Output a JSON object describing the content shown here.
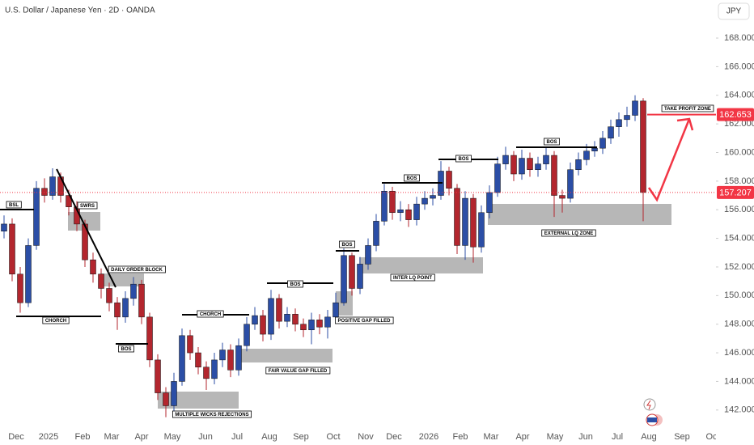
{
  "header": {
    "symbol": "U.S. Dollar / Japanese Yen · 2D · OANDA",
    "currency": "JPY"
  },
  "chart_data": {
    "type": "candlestick",
    "open": [
      154.5,
      155.0,
      151.5,
      149.5,
      153.5,
      157.5,
      157.0,
      158.3,
      157.0,
      156.2,
      155.0,
      152.5,
      151.5,
      150.5,
      149.5,
      148.5,
      149.8,
      150.8,
      148.5,
      145.5,
      143.2,
      142.3,
      144.0,
      147.2,
      146.0,
      145.0,
      144.2,
      145.5,
      146.2,
      144.8,
      146.5,
      148.0,
      148.6,
      147.3,
      149.8,
      148.2,
      148.7,
      148.0,
      147.6,
      148.3,
      147.8,
      148.5,
      149.5,
      152.8,
      150.5,
      152.2,
      153.5,
      155.2,
      157.3,
      155.8,
      156.0,
      155.3,
      156.4,
      156.8,
      157.0,
      158.7,
      157.5,
      153.5,
      156.8,
      153.4,
      155.8,
      157.2,
      159.2,
      159.8,
      158.5,
      159.6,
      158.8,
      159.2,
      159.8,
      157.0,
      156.8,
      158.8,
      159.5,
      160.1,
      160.3,
      161.0,
      161.8,
      162.3,
      162.6,
      163.6
    ],
    "high": [
      155.6,
      155.4,
      152.0,
      154.0,
      158.0,
      158.2,
      158.9,
      158.6,
      157.4,
      156.6,
      155.3,
      153.0,
      151.9,
      150.9,
      149.9,
      150.3,
      151.3,
      151.1,
      148.8,
      145.9,
      143.6,
      144.6,
      147.7,
      147.6,
      146.4,
      145.4,
      146.0,
      146.7,
      146.6,
      147.0,
      148.5,
      149.2,
      149.0,
      150.4,
      150.1,
      149.2,
      149.1,
      148.4,
      148.8,
      148.7,
      149.0,
      150.2,
      153.3,
      153.0,
      152.7,
      154.0,
      155.7,
      157.8,
      157.6,
      156.6,
      156.4,
      156.9,
      157.3,
      157.5,
      159.4,
      159.0,
      157.8,
      157.3,
      157.1,
      156.3,
      157.7,
      159.7,
      160.4,
      160.1,
      160.2,
      160.0,
      159.7,
      160.4,
      160.1,
      157.4,
      159.3,
      160.0,
      160.6,
      160.8,
      161.5,
      162.3,
      162.8,
      163.2,
      164.0,
      163.8
    ],
    "low": [
      154.0,
      151.0,
      148.8,
      149.2,
      153.2,
      156.5,
      156.7,
      156.5,
      155.6,
      154.5,
      152.0,
      150.9,
      149.8,
      148.9,
      147.6,
      148.1,
      149.3,
      148.0,
      145.0,
      142.7,
      141.5,
      141.9,
      143.7,
      145.5,
      144.5,
      143.4,
      143.8,
      145.0,
      144.3,
      144.4,
      146.1,
      147.6,
      146.8,
      146.9,
      147.7,
      147.8,
      147.5,
      147.1,
      146.6,
      147.3,
      147.0,
      148.1,
      149.3,
      150.0,
      150.1,
      151.8,
      153.1,
      154.9,
      155.3,
      155.2,
      154.8,
      154.9,
      156.0,
      156.3,
      156.7,
      157.0,
      152.9,
      152.5,
      152.3,
      153.0,
      155.4,
      156.9,
      158.8,
      158.0,
      158.1,
      158.3,
      158.3,
      158.8,
      155.5,
      155.8,
      156.5,
      158.4,
      159.1,
      159.7,
      159.9,
      160.6,
      161.1,
      161.8,
      162.2,
      155.2
    ],
    "close": [
      155.0,
      151.5,
      149.5,
      153.5,
      157.5,
      157.0,
      158.3,
      157.0,
      156.2,
      155.0,
      152.5,
      151.5,
      150.5,
      149.5,
      148.5,
      149.8,
      150.8,
      148.5,
      145.5,
      143.2,
      142.3,
      144.0,
      147.2,
      146.0,
      145.0,
      144.2,
      145.5,
      146.2,
      144.8,
      146.5,
      148.0,
      148.6,
      147.3,
      149.8,
      148.2,
      148.7,
      148.0,
      147.6,
      148.3,
      147.8,
      148.5,
      149.5,
      152.8,
      150.5,
      152.2,
      153.5,
      155.2,
      157.3,
      155.8,
      156.0,
      155.3,
      156.4,
      156.8,
      157.0,
      158.7,
      157.5,
      153.5,
      156.8,
      153.4,
      155.8,
      157.2,
      159.2,
      159.8,
      158.5,
      159.6,
      158.8,
      159.2,
      159.8,
      157.0,
      156.8,
      158.8,
      159.5,
      160.1,
      160.3,
      161.0,
      161.8,
      162.3,
      162.6,
      163.6,
      157.207
    ],
    "up_color": "#2b4ea6",
    "down_color": "#b3262e",
    "xlim": [
      -0.5,
      88
    ],
    "xticks": [
      {
        "value": 1.5,
        "label": "Dec"
      },
      {
        "value": 5.5,
        "label": "2025"
      },
      {
        "value": 9.7,
        "label": "Feb"
      },
      {
        "value": 13.3,
        "label": "Mar"
      },
      {
        "value": 17.0,
        "label": "Apr"
      },
      {
        "value": 20.8,
        "label": "May"
      },
      {
        "value": 24.9,
        "label": "Jun"
      },
      {
        "value": 28.8,
        "label": "Jul"
      },
      {
        "value": 32.8,
        "label": "Aug"
      },
      {
        "value": 36.7,
        "label": "Sep"
      },
      {
        "value": 40.7,
        "label": "Oct"
      },
      {
        "value": 44.7,
        "label": "Nov"
      },
      {
        "value": 48.2,
        "label": "Dec"
      },
      {
        "value": 52.5,
        "label": "2026"
      },
      {
        "value": 56.4,
        "label": "Feb"
      },
      {
        "value": 60.2,
        "label": "Mar"
      },
      {
        "value": 64.1,
        "label": "Apr"
      },
      {
        "value": 68.1,
        "label": "May"
      },
      {
        "value": 71.9,
        "label": "Jun"
      },
      {
        "value": 75.8,
        "label": "Jul"
      },
      {
        "value": 79.7,
        "label": "Aug"
      },
      {
        "value": 83.8,
        "label": "Sep"
      },
      {
        "value": 87.6,
        "label": "Oct"
      }
    ],
    "ylim": [
      140.8,
      170.66
    ],
    "yticks": [
      {
        "value": 142,
        "label": "142.000"
      },
      {
        "value": 144,
        "label": "144.000"
      },
      {
        "value": 146,
        "label": "146.000"
      },
      {
        "value": 148,
        "label": "148.000"
      },
      {
        "value": 150,
        "label": "150.000"
      },
      {
        "value": 152,
        "label": "152.000"
      },
      {
        "value": 154,
        "label": "154.000"
      },
      {
        "value": 156,
        "label": "156.000"
      },
      {
        "value": 158,
        "label": "158.000"
      },
      {
        "value": 160,
        "label": "160.000"
      },
      {
        "value": 162,
        "label": "162.000"
      },
      {
        "value": 164,
        "label": "164.000"
      },
      {
        "value": 166,
        "label": "166.000"
      },
      {
        "value": 168,
        "label": "168.000"
      }
    ],
    "take_profit": 162.653,
    "last_price": 157.207,
    "annotations": [
      "BSL",
      "SWRS",
      "DAILY ORDER BLOCK",
      "CHORCH",
      "BOS",
      "CHORCH",
      "MULTIPLE WICKS REJECTIONS",
      "BOS",
      "FAIR VALUE GAP FILLED",
      "BOS",
      "POSITIVE GAP FILLED",
      "BOS",
      "INTER LQ POINT",
      "BOS",
      "BOS",
      "EXTERNAL LQ ZONE",
      "TAKE PROFIT ZONE"
    ]
  }
}
